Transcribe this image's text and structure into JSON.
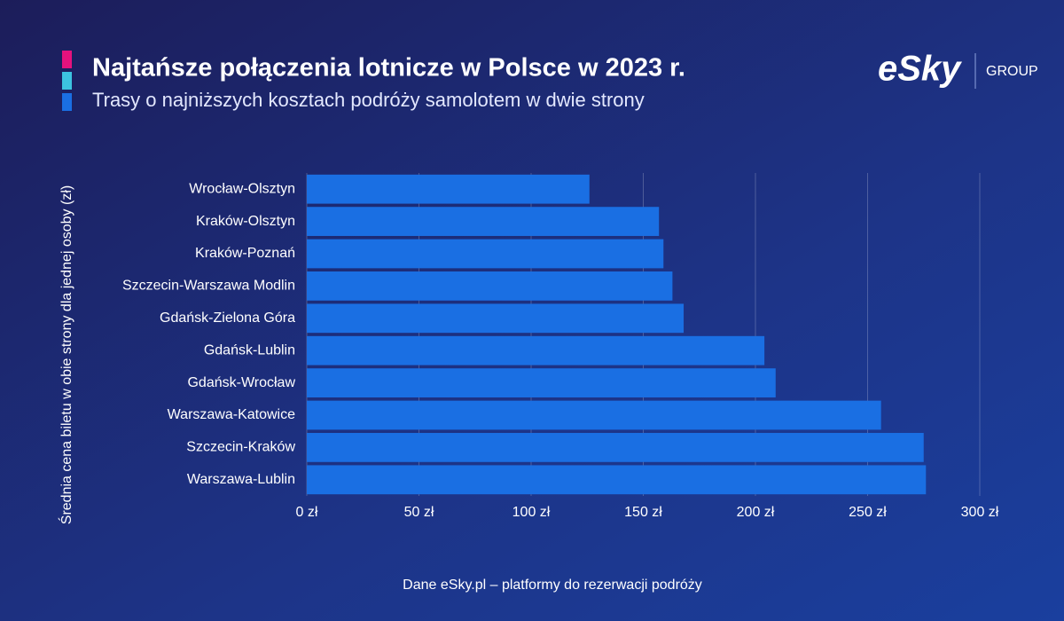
{
  "chart_data": {
    "type": "bar",
    "orientation": "horizontal",
    "title": "Najtańsze połączenia lotnicze w Polsce w 2023 r.",
    "subtitle": "Trasy o najniższych kosztach podróży samolotem w dwie strony",
    "y_label": "Średnia cena biletu w obie strony dla jednej osoby (zł)",
    "source": "Dane eSky.pl – platformy do rezerwacji podróży",
    "categories": [
      "Wrocław-Olsztyn",
      "Kraków-Olsztyn",
      "Kraków-Poznań",
      "Szczecin-Warszawa Modlin",
      "Gdańsk-Zielona Góra",
      "Gdańsk-Lublin",
      "Gdańsk-Wrocław",
      "Warszawa-Katowice",
      "Szczecin-Kraków",
      "Warszawa-Lublin"
    ],
    "values": [
      126,
      157,
      159,
      163,
      168,
      204,
      209,
      256,
      275,
      276
    ],
    "color": "#1a6fe3",
    "xlim": [
      0,
      300
    ],
    "xticks": [
      {
        "value": 0,
        "label": "0 zł"
      },
      {
        "value": 50,
        "label": "50 zł"
      },
      {
        "value": 100,
        "label": "100 zł"
      },
      {
        "value": 150,
        "label": "150 zł"
      },
      {
        "value": 200,
        "label": "200 zł"
      },
      {
        "value": 250,
        "label": "250 zł"
      },
      {
        "value": 300,
        "label": "300 zł"
      }
    ],
    "grid": true
  },
  "logo": {
    "brand": "eSky",
    "group": "GROUP"
  }
}
